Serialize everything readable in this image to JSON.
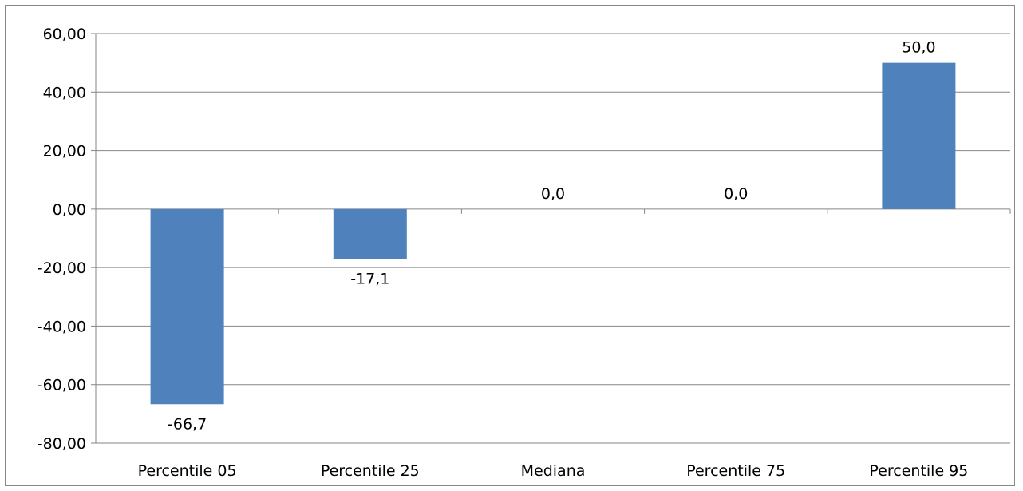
{
  "chart_data": {
    "type": "bar",
    "categories": [
      "Percentile 05",
      "Percentile 25",
      "Mediana",
      "Percentile 75",
      "Percentile 95"
    ],
    "values": [
      -66.7,
      -17.1,
      0.0,
      0.0,
      50.0
    ],
    "data_labels": [
      "-66,7",
      "-17,1",
      "0,0",
      "0,0",
      "50,0"
    ],
    "ylim": [
      -80,
      60
    ],
    "yticks": [
      60,
      40,
      20,
      0,
      -20,
      -40,
      -60,
      -80
    ],
    "ytick_labels": [
      "60,00",
      "40,00",
      "20,00",
      "0,00",
      "-20,00",
      "-40,00",
      "-60,00",
      "-80,00"
    ],
    "title": "",
    "xlabel": "",
    "ylabel": "",
    "grid": true,
    "legend": "none",
    "bar_color": "#4F81BD",
    "grid_color": "#868686"
  }
}
